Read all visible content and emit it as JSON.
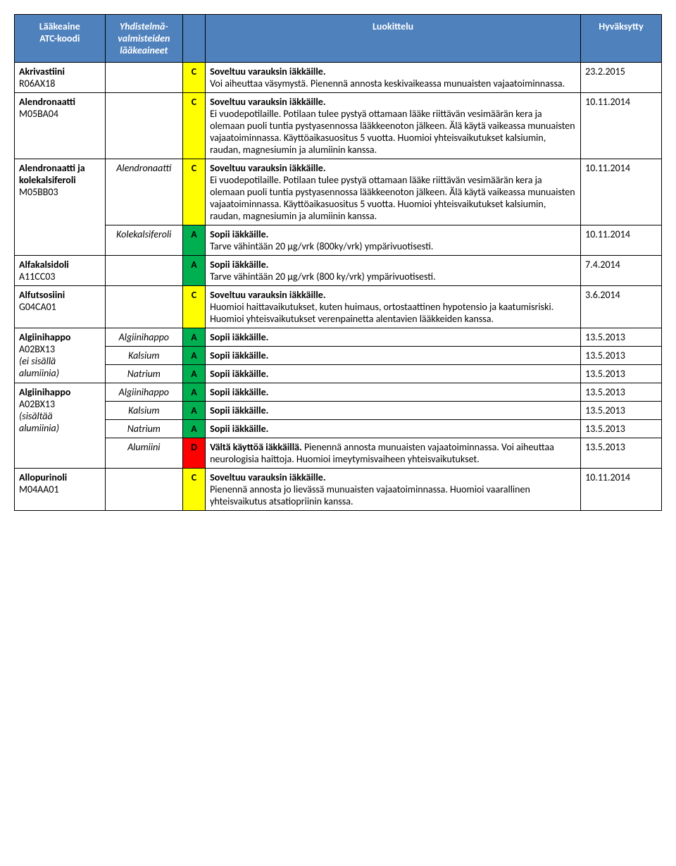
{
  "header": {
    "col1_l1": "Lääkeaine",
    "col1_l2": "ATC-koodi",
    "col2_l1": "Yhdistelmä-",
    "col2_l2": "valmisteiden",
    "col2_l3": "lääkeaineet",
    "col4": "Luokittelu",
    "col5": "Hyväksytty"
  },
  "r1": {
    "name": "Akrivastiini",
    "atc": "R06AX18",
    "cls": "C",
    "title": "Soveltuu varauksin iäkkäille.",
    "body": "Voi aiheuttaa väsymystä. Pienennä annosta keskivaikeassa munuaisten vajaatoiminnassa.",
    "date": "23.2.2015"
  },
  "r2": {
    "name": "Alendronaatti",
    "atc": "M05BA04",
    "cls": "C",
    "title": "Soveltuu varauksin iäkkäille.",
    "body": "Ei vuodepotilaille. Potilaan tulee pystyä ottamaan lääke riittävän vesimäärän kera ja olemaan puoli tuntia pystyasennossa lääkkeenoton jälkeen. Älä käytä vaikeassa munuaisten vajaatoiminnassa. Käyttöaikasuositus 5 vuotta. Huomioi yhteisvaikutukset kalsiumin, raudan, magnesiumin ja alumiinin kanssa.",
    "date": "10.11.2014"
  },
  "r3": {
    "name": "Alendronaatti ja kolekalsiferoli",
    "atc": "M05BB03",
    "sub1": "Alendronaatti",
    "sub2": "Kolekalsiferoli",
    "cls1": "C",
    "title1": "Soveltuu varauksin iäkkäille.",
    "body1": "Ei vuodepotilaille. Potilaan tulee pystyä ottamaan lääke riittävän vesimäärän kera ja olemaan puoli tuntia pystyasennossa lääkkeenoton jälkeen. Älä käytä vaikeassa munuaisten vajaatoiminnassa. Käyttöaikasuositus 5 vuotta. Huomioi yhteisvaikutukset kalsiumin, raudan, magnesiumin ja alumiinin kanssa.",
    "date1": "10.11.2014",
    "cls2": "A",
    "title2": "Sopii iäkkäille.",
    "body2": "Tarve vähintään 20 µg/vrk (800ky/vrk) ympärivuotisesti.",
    "date2": "10.11.2014"
  },
  "r4": {
    "name": "Alfakalsidoli",
    "atc": "A11CC03",
    "cls": "A",
    "title": "Sopii iäkkäille.",
    "body": "Tarve vähintään 20 µg/vrk (800 ky/vrk) ympärivuotisesti.",
    "date": "7.4.2014"
  },
  "r5": {
    "name": "Alfutsosiini",
    "atc": "G04CA01",
    "cls": "C",
    "title": "Soveltuu varauksin iäkkäille.",
    "body": "Huomioi haittavaikutukset, kuten huimaus, ortostaattinen hypotensio ja kaatumisriski. Huomioi yhteisvaikutukset verenpainetta alentavien lääkkeiden kanssa.",
    "date": "3.6.2014"
  },
  "r6": {
    "name": "Algiinihappo",
    "atc": "A02BX13",
    "extra_l1": "(ei sisällä",
    "extra_l2": "alumiinia)",
    "sub1": "Algiinihappo",
    "cls1": "A",
    "t1": "Sopii iäkkäille.",
    "d1": "13.5.2013",
    "sub2": "Kalsium",
    "cls2": "A",
    "t2": "Sopii iäkkäille.",
    "d2": "13.5.2013",
    "sub3": "Natrium",
    "cls3": "A",
    "t3": "Sopii iäkkäille.",
    "d3": "13.5.2013"
  },
  "r7": {
    "name": "Algiinihappo",
    "atc": "A02BX13",
    "extra_l1": "(sisältää",
    "extra_l2": "alumiinia)",
    "sub1": "Algiinihappo",
    "cls1": "A",
    "t1": "Sopii iäkkäille.",
    "d1": "13.5.2013",
    "sub2": "Kalsium",
    "cls2": "A",
    "t2": "Sopii iäkkäille.",
    "d2": "13.5.2013",
    "sub3": "Natrium",
    "cls3": "A",
    "t3": "Sopii iäkkäille.",
    "d3": "13.5.2013",
    "sub4": "Alumiini",
    "cls4": "D",
    "t4a": "Vältä käyttöä iäkkäillä.",
    "t4b": " Pienennä annosta munuaisten vajaatoiminnassa. Voi aiheuttaa neurologisia haittoja. Huomioi imeytymisvaiheen yhteisvaikutukset.",
    "d4": "13.5.2013"
  },
  "r8": {
    "name": "Allopurinoli",
    "atc": "M04AA01",
    "cls": "C",
    "title": "Soveltuu varauksin iäkkäille.",
    "body": "Pienennä annosta jo lievässä munuaisten vajaatoiminnassa. Huomioi vaarallinen yhteisvaikutus atsatiopriinin kanssa.",
    "date": "10.11.2014"
  }
}
